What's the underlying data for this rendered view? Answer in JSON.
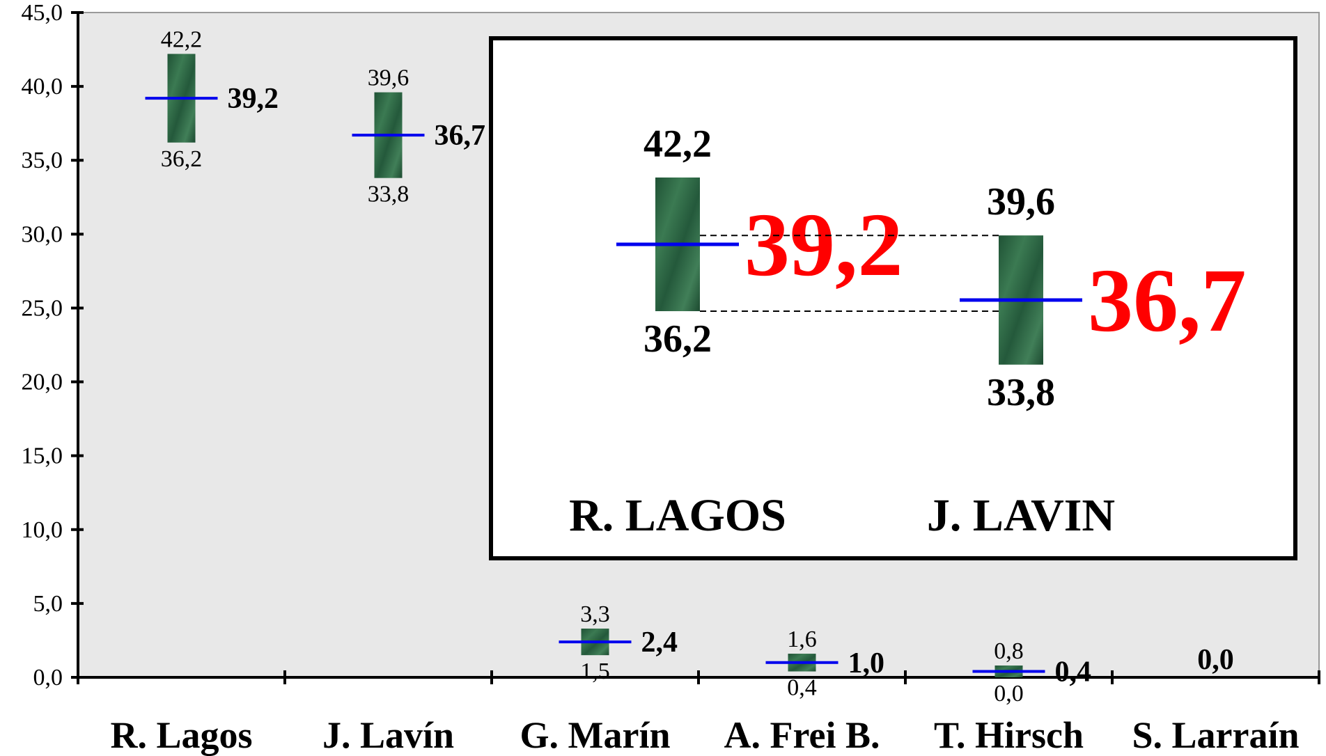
{
  "chart_data": {
    "type": "range",
    "categories": [
      "R. Lagos",
      "J. Lavín",
      "G. Marín",
      "A. Frei B.",
      "T. Hirsch",
      "S. Larraín"
    ],
    "mean": [
      39.2,
      36.7,
      2.4,
      1.0,
      0.4,
      0.0
    ],
    "upper": [
      42.2,
      39.6,
      3.3,
      1.6,
      0.8,
      null
    ],
    "lower": [
      36.2,
      33.8,
      1.5,
      0.4,
      0.0,
      null
    ],
    "mean_labels": [
      "39,2",
      "36,7",
      "2,4",
      "1,0",
      "0,4",
      "0,0"
    ],
    "upper_labels": [
      "42,2",
      "39,6",
      "3,3",
      "1,6",
      "0,8",
      ""
    ],
    "lower_labels": [
      "36,2",
      "33,8",
      "1,5",
      "0,4",
      "0,0",
      ""
    ],
    "ylim": [
      0,
      45
    ],
    "yticks": [
      0,
      5,
      10,
      15,
      20,
      25,
      30,
      35,
      40,
      45
    ],
    "ytick_labels": [
      "0,0",
      "5,0",
      "10,0",
      "15,0",
      "20,0",
      "25,0",
      "30,0",
      "35,0",
      "40,0",
      "45,0"
    ],
    "grid": false,
    "colors": {
      "plot_background": "#e8e8e8",
      "range_bar": "#2e6a45",
      "mean_line": "#0000ee",
      "inset_mean_text": "#ff0000",
      "axis": "#000000"
    },
    "inset": {
      "candidates": [
        {
          "name": "R. LAGOS",
          "upper": 42.2,
          "mean": 39.2,
          "lower": 36.2,
          "upper_label": "42,2",
          "mean_label": "39,2",
          "lower_label": "36,2"
        },
        {
          "name": "J. LAVIN",
          "upper": 39.6,
          "mean": 36.7,
          "lower": 33.8,
          "upper_label": "39,6",
          "mean_label": "36,7",
          "lower_label": "33,8"
        }
      ]
    }
  }
}
